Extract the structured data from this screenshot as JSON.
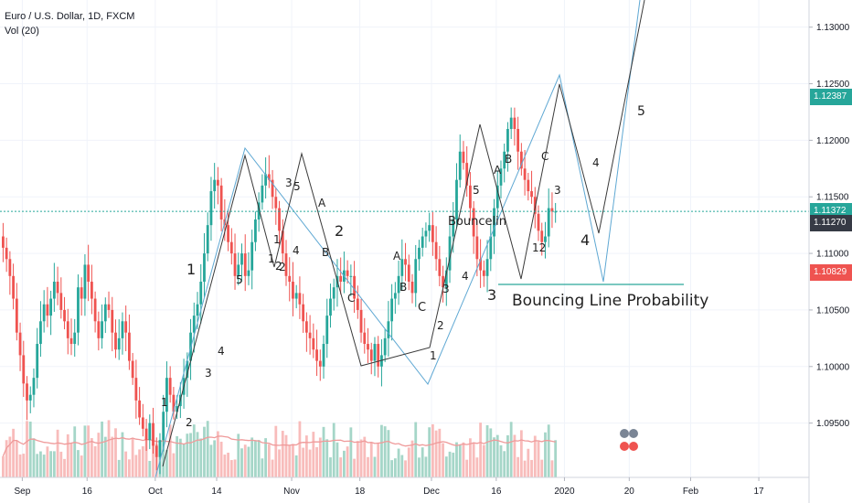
{
  "legend": {
    "symbol_title": "Euro / U.S. Dollar, 1D, FXCM",
    "volume_title": "Vol (20)"
  },
  "price_tags": [
    {
      "value": "1.12387",
      "color": "#26a69a"
    },
    {
      "value": "1.11372",
      "color": "#26a69a"
    },
    {
      "value": "1.11270",
      "color": "#363a45"
    },
    {
      "value": "1.10829",
      "color": "#ef5350"
    }
  ],
  "chart_data": {
    "type": "candlestick",
    "title": "Euro / U.S. Dollar, 1D, FXCM",
    "y_ticks": [
      "1.13000",
      "1.12500",
      "1.12000",
      "1.11500",
      "1.11000",
      "1.10500",
      "1.10000",
      "1.09500"
    ],
    "y_tick_values": [
      1.13,
      1.125,
      1.12,
      1.115,
      1.11,
      1.105,
      1.1,
      1.095
    ],
    "x_ticks": [
      "Sep",
      "16",
      "Oct",
      "14",
      "Nov",
      "18",
      "Dec",
      "16",
      "2020",
      "20",
      "Feb",
      "17"
    ],
    "x_tick_index": [
      6,
      25,
      45,
      63,
      85,
      105,
      126,
      145,
      165,
      184,
      202,
      222
    ],
    "ylim": [
      1.0902,
      1.1324
    ],
    "x_count": 246,
    "start_index": 0,
    "closes": [
      1.1105,
      1.1095,
      1.108,
      1.106,
      1.103,
      1.101,
      1.0985,
      1.097,
      1.0975,
      1.099,
      1.102,
      1.104,
      1.1055,
      1.1045,
      1.106,
      1.1075,
      1.1065,
      1.105,
      1.104,
      1.1025,
      1.102,
      1.103,
      1.107,
      1.106,
      1.109,
      1.1075,
      1.106,
      1.104,
      1.1025,
      1.104,
      1.1055,
      1.105,
      1.103,
      1.1015,
      1.1025,
      1.104,
      1.103,
      1.1005,
      1.099,
      1.097,
      1.0955,
      1.0945,
      1.0935,
      1.095,
      1.093,
      1.092,
      1.0935,
      1.096,
      1.099,
      1.0975,
      1.096,
      1.0965,
      1.0975,
      1.099,
      1.1005,
      1.103,
      1.1045,
      1.1055,
      1.1075,
      1.11,
      1.1125,
      1.1155,
      1.1165,
      1.116,
      1.113,
      1.1125,
      1.111,
      1.11,
      1.108,
      1.109,
      1.11,
      1.108,
      1.1085,
      1.111,
      1.113,
      1.1145,
      1.116,
      1.117,
      1.1165,
      1.115,
      1.114,
      1.112,
      1.11,
      1.108,
      1.1075,
      1.106,
      1.1065,
      1.1055,
      1.104,
      1.103,
      1.1025,
      1.1015,
      1.1005,
      1.1,
      1.102,
      1.1045,
      1.106,
      1.107,
      1.108,
      1.1075,
      1.1085,
      1.108,
      1.108,
      1.106,
      1.105,
      1.103,
      1.102,
      1.1015,
      1.1005,
      1.102,
      1.1,
      1.101,
      1.1025,
      1.104,
      1.106,
      1.1065,
      1.108,
      1.1095,
      1.109,
      1.1075,
      1.1065,
      1.1095,
      1.1105,
      1.1115,
      1.112,
      1.1125,
      1.111,
      1.1095,
      1.108,
      1.107,
      1.1085,
      1.1115,
      1.113,
      1.1165,
      1.119,
      1.118,
      1.116,
      1.114,
      1.1115,
      1.1095,
      1.1085,
      1.108,
      1.1095,
      1.1115,
      1.114,
      1.116,
      1.1175,
      1.119,
      1.121,
      1.122,
      1.121,
      1.119,
      1.1175,
      1.1165,
      1.1155,
      1.115,
      1.1135,
      1.112,
      1.111,
      1.1115,
      1.114,
      1.1137,
      1.1137
    ],
    "opens": [
      1.1115,
      1.1105,
      1.1095,
      1.108,
      1.106,
      1.103,
      1.101,
      1.0985,
      1.097,
      1.0975,
      1.099,
      1.102,
      1.104,
      1.1055,
      1.1045,
      1.106,
      1.1075,
      1.1065,
      1.105,
      1.104,
      1.1025,
      1.102,
      1.103,
      1.107,
      1.106,
      1.109,
      1.1075,
      1.106,
      1.104,
      1.1025,
      1.104,
      1.1055,
      1.105,
      1.103,
      1.1015,
      1.1025,
      1.104,
      1.103,
      1.1005,
      1.099,
      1.097,
      1.0955,
      1.0945,
      1.0935,
      1.095,
      1.093,
      1.092,
      1.0935,
      1.096,
      1.099,
      1.0975,
      1.096,
      1.0965,
      1.0975,
      1.099,
      1.1005,
      1.103,
      1.1045,
      1.1055,
      1.1075,
      1.11,
      1.1125,
      1.1155,
      1.1165,
      1.116,
      1.113,
      1.1125,
      1.111,
      1.11,
      1.108,
      1.109,
      1.11,
      1.108,
      1.1085,
      1.111,
      1.113,
      1.1145,
      1.116,
      1.117,
      1.1165,
      1.115,
      1.114,
      1.112,
      1.11,
      1.108,
      1.1075,
      1.106,
      1.1065,
      1.1055,
      1.104,
      1.103,
      1.1025,
      1.1015,
      1.1005,
      1.1,
      1.102,
      1.1045,
      1.106,
      1.107,
      1.108,
      1.1075,
      1.1085,
      1.108,
      1.108,
      1.106,
      1.105,
      1.103,
      1.102,
      1.1015,
      1.1005,
      1.102,
      1.1,
      1.101,
      1.1025,
      1.104,
      1.106,
      1.1065,
      1.108,
      1.1095,
      1.109,
      1.1075,
      1.1065,
      1.1095,
      1.1105,
      1.1115,
      1.112,
      1.1125,
      1.111,
      1.1095,
      1.108,
      1.107,
      1.1085,
      1.1115,
      1.113,
      1.1165,
      1.119,
      1.118,
      1.116,
      1.114,
      1.1115,
      1.1095,
      1.1085,
      1.108,
      1.1095,
      1.1115,
      1.114,
      1.116,
      1.1175,
      1.119,
      1.121,
      1.122,
      1.121,
      1.119,
      1.1175,
      1.1165,
      1.1155,
      1.115,
      1.1135,
      1.112,
      1.111,
      1.1115,
      1.114,
      1.1137
    ],
    "annotations": [
      {
        "text": "1",
        "size": 16
      },
      {
        "text": "2",
        "size": 16
      },
      {
        "text": "3",
        "size": 16
      },
      {
        "text": "4",
        "size": 16
      },
      {
        "text": "5",
        "size": 14
      },
      {
        "text": "Bouncing Line Probability",
        "size": 17
      },
      {
        "text": "Bouncelin",
        "size": 13
      },
      {
        "text": "A",
        "size": 12
      },
      {
        "text": "B",
        "size": 12
      },
      {
        "text": "C",
        "size": 13
      }
    ],
    "wave_labels": [
      "1",
      "2",
      "3",
      "4",
      "5",
      "1",
      "2",
      "3",
      "4",
      "5",
      "A",
      "B",
      "C",
      "1",
      "2",
      "3",
      "4",
      "5",
      "A",
      "B",
      "C",
      "3",
      "4",
      "12",
      "1",
      "2"
    ]
  }
}
